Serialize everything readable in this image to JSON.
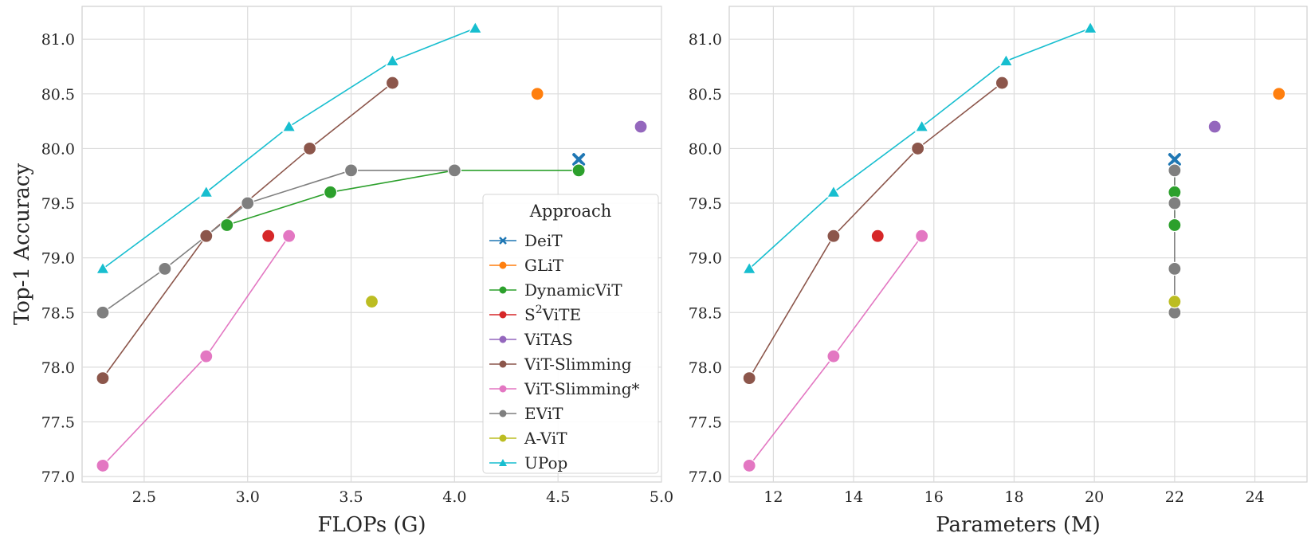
{
  "chart_data": [
    {
      "type": "scatter",
      "xlabel": "FLOPs (G)",
      "ylabel": "Top-1 Accuracy",
      "xlim": [
        2.2,
        5.0
      ],
      "ylim": [
        76.95,
        81.3
      ],
      "xticks": [
        "2.5",
        "3.0",
        "3.5",
        "4.0",
        "4.5",
        "5.0"
      ],
      "yticks": [
        "77.0",
        "77.5",
        "78.0",
        "78.5",
        "79.0",
        "79.5",
        "80.0",
        "80.5",
        "81.0"
      ],
      "grid": true,
      "legend": {
        "title": "Approach",
        "placement": "bottom-right",
        "entries": [
          "DeiT",
          "GLiT",
          "DynamicViT",
          "S2ViTE",
          "ViTAS",
          "ViT-Slimming",
          "ViT-Slimming*",
          "EViT",
          "A-ViT",
          "UPop"
        ]
      },
      "series": [
        {
          "name": "DeiT",
          "color": "#1f77b4",
          "marker": "x",
          "points": [
            [
              4.6,
              79.9
            ]
          ]
        },
        {
          "name": "GLiT",
          "color": "#ff7f0e",
          "marker": "circle",
          "points": [
            [
              4.4,
              80.5
            ]
          ]
        },
        {
          "name": "DynamicViT",
          "color": "#2ca02c",
          "marker": "circle",
          "points": [
            [
              2.9,
              79.3
            ],
            [
              3.4,
              79.6
            ],
            [
              4.0,
              79.8
            ],
            [
              4.6,
              79.8
            ]
          ]
        },
        {
          "name": "S2ViTE",
          "color": "#d62728",
          "marker": "circle",
          "points": [
            [
              3.1,
              79.2
            ]
          ]
        },
        {
          "name": "ViTAS",
          "color": "#9467bd",
          "marker": "circle",
          "points": [
            [
              4.9,
              80.2
            ]
          ]
        },
        {
          "name": "ViT-Slimming",
          "color": "#8c564b",
          "marker": "circle",
          "points": [
            [
              2.3,
              77.9
            ],
            [
              2.8,
              79.2
            ],
            [
              3.3,
              80.0
            ],
            [
              3.7,
              80.6
            ]
          ]
        },
        {
          "name": "ViT-Slimming*",
          "color": "#e377c2",
          "marker": "circle",
          "points": [
            [
              2.3,
              77.1
            ],
            [
              2.8,
              78.1
            ],
            [
              3.2,
              79.2
            ]
          ]
        },
        {
          "name": "EViT",
          "color": "#7f7f7f",
          "marker": "circle",
          "points": [
            [
              2.3,
              78.5
            ],
            [
              2.6,
              78.9
            ],
            [
              3.0,
              79.5
            ],
            [
              3.5,
              79.8
            ],
            [
              4.0,
              79.8
            ]
          ]
        },
        {
          "name": "A-ViT",
          "color": "#bcbd22",
          "marker": "circle",
          "points": [
            [
              3.6,
              78.6
            ]
          ]
        },
        {
          "name": "UPop",
          "color": "#17becf",
          "marker": "triangle",
          "points": [
            [
              2.3,
              78.9
            ],
            [
              2.8,
              79.6
            ],
            [
              3.2,
              80.2
            ],
            [
              3.7,
              80.8
            ],
            [
              4.1,
              81.1
            ]
          ]
        }
      ]
    },
    {
      "type": "scatter",
      "xlabel": "Parameters (M)",
      "ylabel": "",
      "xlim": [
        10.9,
        25.3
      ],
      "ylim": [
        76.95,
        81.3
      ],
      "xticks": [
        "12",
        "14",
        "16",
        "18",
        "20",
        "22",
        "24"
      ],
      "yticks": [
        "77.0",
        "77.5",
        "78.0",
        "78.5",
        "79.0",
        "79.5",
        "80.0",
        "80.5",
        "81.0"
      ],
      "grid": true,
      "series": [
        {
          "name": "DeiT",
          "color": "#1f77b4",
          "marker": "x",
          "points": [
            [
              22.0,
              79.9
            ]
          ]
        },
        {
          "name": "GLiT",
          "color": "#ff7f0e",
          "marker": "circle",
          "points": [
            [
              24.6,
              80.5
            ]
          ]
        },
        {
          "name": "DynamicViT",
          "color": "#2ca02c",
          "marker": "circle",
          "points": [
            [
              22.0,
              79.3
            ],
            [
              22.0,
              79.6
            ],
            [
              22.0,
              79.8
            ]
          ]
        },
        {
          "name": "S2ViTE",
          "color": "#d62728",
          "marker": "circle",
          "points": [
            [
              14.6,
              79.2
            ]
          ]
        },
        {
          "name": "ViTAS",
          "color": "#9467bd",
          "marker": "circle",
          "points": [
            [
              23.0,
              80.2
            ]
          ]
        },
        {
          "name": "ViT-Slimming",
          "color": "#8c564b",
          "marker": "circle",
          "points": [
            [
              11.4,
              77.9
            ],
            [
              13.5,
              79.2
            ],
            [
              15.6,
              80.0
            ],
            [
              17.7,
              80.6
            ]
          ]
        },
        {
          "name": "ViT-Slimming*",
          "color": "#e377c2",
          "marker": "circle",
          "points": [
            [
              11.4,
              77.1
            ],
            [
              13.5,
              78.1
            ],
            [
              15.7,
              79.2
            ]
          ]
        },
        {
          "name": "EViT",
          "color": "#7f7f7f",
          "marker": "circle",
          "points": [
            [
              22.0,
              78.5
            ],
            [
              22.0,
              78.9
            ],
            [
              22.0,
              79.5
            ],
            [
              22.0,
              79.8
            ]
          ]
        },
        {
          "name": "A-ViT",
          "color": "#bcbd22",
          "marker": "circle",
          "points": [
            [
              22.0,
              78.6
            ]
          ]
        },
        {
          "name": "UPop",
          "color": "#17becf",
          "marker": "triangle",
          "points": [
            [
              11.4,
              78.9
            ],
            [
              13.5,
              79.6
            ],
            [
              15.7,
              80.2
            ],
            [
              17.8,
              80.8
            ],
            [
              19.9,
              81.1
            ]
          ]
        }
      ]
    }
  ]
}
